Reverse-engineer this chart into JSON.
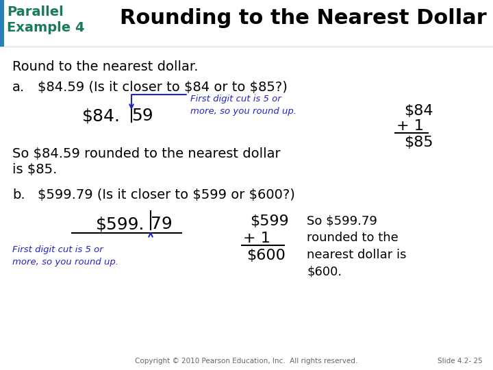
{
  "bg_color": "#ffffff",
  "header_bg": "#ffffff",
  "header_left_bar_color": "#2980b9",
  "header_text": "Rounding to the Nearest Dollar",
  "header_label": "Parallel\nExample 4",
  "header_label_color": "#1a7a5e",
  "header_title_color": "#000000",
  "blue_color": "#2222cc",
  "black_color": "#000000",
  "footer_text": "Copyright © 2010 Pearson Education, Inc.  All rights reserved.",
  "slide_num": "Slide 4.2- 25",
  "gray_color": "#666666"
}
